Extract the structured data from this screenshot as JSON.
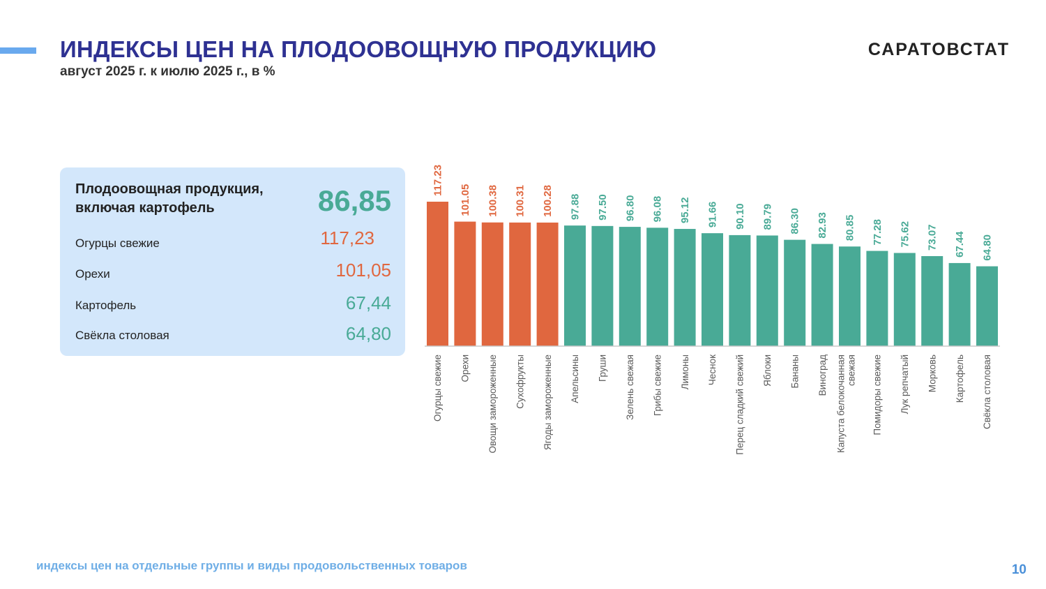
{
  "header": {
    "title": "ИНДЕКСЫ ЦЕН НА ПЛОДООВОЩНУЮ ПРОДУКЦИЮ",
    "subtitle": "август 2025 г. к июлю 2025 г., в %",
    "brand": "САРАТОВСТАТ"
  },
  "summary": {
    "main": {
      "label": "Плодоовощная продукция, включая картофель",
      "value": "86,85"
    },
    "items": [
      {
        "label": "Огурцы свежие",
        "value": "117,23"
      },
      {
        "label": "Орехи",
        "value": "101,05"
      },
      {
        "label": "Картофель",
        "value": "67,44"
      },
      {
        "label": "Свёкла столовая",
        "value": "64,80"
      }
    ]
  },
  "colors": {
    "increase": "#e0673f",
    "decrease": "#49aa96",
    "title": "#2e3192",
    "panel": "#d3e7fb",
    "footer": "#6faee6"
  },
  "footer": {
    "note": "индексы цен на отдельные группы и виды продовольственных товаров",
    "page": "10"
  },
  "chart_data": {
    "type": "bar",
    "title": "",
    "xlabel": "",
    "ylabel": "",
    "ylim": [
      0,
      117.23
    ],
    "grid": false,
    "categories": [
      "Огурцы свежие",
      "Орехи",
      "Овощи замороженные",
      "Сухофрукты",
      "Ягоды замороженные",
      "Апельсины",
      "Груши",
      "Зелень свежая",
      "Грибы свежие",
      "Лимоны",
      "Чеснок",
      "Перец сладкий свежий",
      "Яблоки",
      "Бананы",
      "Виноград",
      "Капуста белокочанная свежая",
      "Помидоры свежие",
      "Лук репчатый",
      "Морковь",
      "Картофель",
      "Свёкла столовая"
    ],
    "values": [
      117.23,
      101.05,
      100.38,
      100.31,
      100.28,
      97.88,
      97.5,
      96.8,
      96.08,
      95.12,
      91.66,
      90.1,
      89.79,
      86.3,
      82.93,
      80.85,
      77.28,
      75.62,
      73.07,
      67.44,
      64.8
    ],
    "labels": [
      "117.23",
      "101.05",
      "100.38",
      "100.31",
      "100.28",
      "97.88",
      "97.50",
      "96.80",
      "96.08",
      "95.12",
      "91.66",
      "90.10",
      "89.79",
      "86.30",
      "82.93",
      "80.85",
      "77.28",
      "75.62",
      "73.07",
      "67.44",
      "64.80"
    ]
  }
}
